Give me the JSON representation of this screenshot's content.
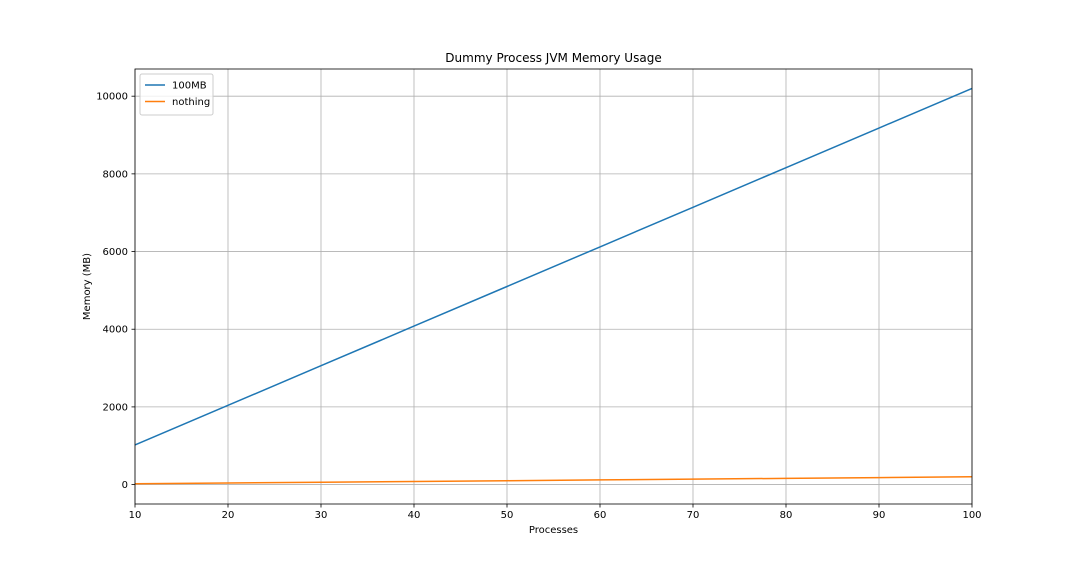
{
  "chart_data": {
    "type": "line",
    "title": "Dummy Process JVM Memory Usage",
    "xlabel": "Processes",
    "ylabel": "Memory (MB)",
    "xlim": [
      10,
      100
    ],
    "ylim": [
      -500,
      10700
    ],
    "xticks": [
      10,
      20,
      30,
      40,
      50,
      60,
      70,
      80,
      90,
      100
    ],
    "yticks": [
      0,
      2000,
      4000,
      6000,
      8000,
      10000
    ],
    "grid": true,
    "legend_position": "top-left",
    "series": [
      {
        "name": "100MB",
        "color": "#1f77b4",
        "x": [
          10,
          20,
          30,
          40,
          50,
          60,
          70,
          80,
          90,
          100
        ],
        "y": [
          1020,
          2040,
          3060,
          4080,
          5100,
          6120,
          7140,
          8160,
          9180,
          10200
        ]
      },
      {
        "name": "nothing",
        "color": "#ff7f0e",
        "x": [
          10,
          20,
          30,
          40,
          50,
          60,
          70,
          80,
          90,
          100
        ],
        "y": [
          20,
          40,
          60,
          80,
          100,
          120,
          140,
          160,
          180,
          200
        ]
      }
    ]
  }
}
